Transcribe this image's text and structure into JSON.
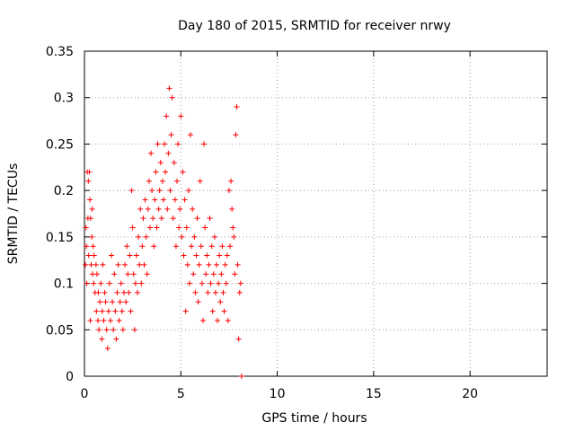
{
  "chart_data": {
    "type": "scatter",
    "title": "Day 180 of 2015, SRMTID for receiver nrwy",
    "xlabel": "GPS time / hours",
    "ylabel": "SRMTID / TECUs",
    "xlim": [
      0,
      24
    ],
    "ylim": [
      0,
      0.35
    ],
    "x_ticks": [
      0,
      5,
      10,
      15,
      20
    ],
    "x_tick_labels": [
      "0",
      "5",
      "10",
      "15",
      "20"
    ],
    "y_ticks": [
      0,
      0.05,
      0.1,
      0.15,
      0.2,
      0.25,
      0.3,
      0.35
    ],
    "y_tick_labels": [
      "0",
      "0.05",
      "0.1",
      "0.15",
      "0.2",
      "0.25",
      "0.3",
      "0.35"
    ],
    "grid": true,
    "marker": "+",
    "marker_color": "#ff0000",
    "series": [
      {
        "name": "SRMTID",
        "points": [
          [
            0.05,
            0.12
          ],
          [
            0.08,
            0.16
          ],
          [
            0.1,
            0.14
          ],
          [
            0.12,
            0.1
          ],
          [
            0.15,
            0.22
          ],
          [
            0.18,
            0.17
          ],
          [
            0.2,
            0.21
          ],
          [
            0.22,
            0.13
          ],
          [
            0.25,
            0.22
          ],
          [
            0.28,
            0.19
          ],
          [
            0.3,
            0.06
          ],
          [
            0.32,
            0.17
          ],
          [
            0.35,
            0.12
          ],
          [
            0.38,
            0.15
          ],
          [
            0.4,
            0.18
          ],
          [
            0.42,
            0.11
          ],
          [
            0.45,
            0.14
          ],
          [
            0.48,
            0.1
          ],
          [
            0.5,
            0.13
          ],
          [
            0.55,
            0.09
          ],
          [
            0.6,
            0.12
          ],
          [
            0.62,
            0.07
          ],
          [
            0.65,
            0.11
          ],
          [
            0.7,
            0.06
          ],
          [
            0.72,
            0.09
          ],
          [
            0.75,
            0.05
          ],
          [
            0.8,
            0.08
          ],
          [
            0.85,
            0.1
          ],
          [
            0.9,
            0.04
          ],
          [
            0.92,
            0.07
          ],
          [
            0.95,
            0.12
          ],
          [
            1.0,
            0.06
          ],
          [
            1.05,
            0.09
          ],
          [
            1.1,
            0.08
          ],
          [
            1.15,
            0.05
          ],
          [
            1.2,
            0.03
          ],
          [
            1.25,
            0.07
          ],
          [
            1.3,
            0.1
          ],
          [
            1.35,
            0.06
          ],
          [
            1.4,
            0.13
          ],
          [
            1.45,
            0.08
          ],
          [
            1.5,
            0.05
          ],
          [
            1.55,
            0.11
          ],
          [
            1.6,
            0.07
          ],
          [
            1.65,
            0.04
          ],
          [
            1.7,
            0.09
          ],
          [
            1.75,
            0.12
          ],
          [
            1.8,
            0.06
          ],
          [
            1.85,
            0.08
          ],
          [
            1.9,
            0.1
          ],
          [
            1.95,
            0.07
          ],
          [
            2.0,
            0.05
          ],
          [
            2.05,
            0.09
          ],
          [
            2.1,
            0.12
          ],
          [
            2.15,
            0.08
          ],
          [
            2.2,
            0.14
          ],
          [
            2.25,
            0.11
          ],
          [
            2.3,
            0.09
          ],
          [
            2.35,
            0.13
          ],
          [
            2.4,
            0.07
          ],
          [
            2.45,
            0.2
          ],
          [
            2.5,
            0.16
          ],
          [
            2.55,
            0.11
          ],
          [
            2.6,
            0.05
          ],
          [
            2.65,
            0.1
          ],
          [
            2.7,
            0.13
          ],
          [
            2.75,
            0.09
          ],
          [
            2.8,
            0.15
          ],
          [
            2.85,
            0.12
          ],
          [
            2.9,
            0.18
          ],
          [
            2.95,
            0.1
          ],
          [
            3.0,
            0.14
          ],
          [
            3.05,
            0.17
          ],
          [
            3.1,
            0.12
          ],
          [
            3.15,
            0.19
          ],
          [
            3.2,
            0.15
          ],
          [
            3.25,
            0.11
          ],
          [
            3.3,
            0.18
          ],
          [
            3.35,
            0.21
          ],
          [
            3.4,
            0.16
          ],
          [
            3.45,
            0.24
          ],
          [
            3.5,
            0.2
          ],
          [
            3.55,
            0.17
          ],
          [
            3.6,
            0.14
          ],
          [
            3.65,
            0.19
          ],
          [
            3.7,
            0.22
          ],
          [
            3.75,
            0.16
          ],
          [
            3.8,
            0.25
          ],
          [
            3.85,
            0.18
          ],
          [
            3.9,
            0.2
          ],
          [
            3.95,
            0.23
          ],
          [
            4.0,
            0.17
          ],
          [
            4.05,
            0.21
          ],
          [
            4.1,
            0.19
          ],
          [
            4.15,
            0.25
          ],
          [
            4.2,
            0.22
          ],
          [
            4.25,
            0.28
          ],
          [
            4.3,
            0.18
          ],
          [
            4.35,
            0.24
          ],
          [
            4.4,
            0.31
          ],
          [
            4.45,
            0.2
          ],
          [
            4.5,
            0.26
          ],
          [
            4.55,
            0.3
          ],
          [
            4.6,
            0.17
          ],
          [
            4.65,
            0.23
          ],
          [
            4.7,
            0.19
          ],
          [
            4.75,
            0.14
          ],
          [
            4.8,
            0.21
          ],
          [
            4.85,
            0.25
          ],
          [
            4.9,
            0.16
          ],
          [
            4.95,
            0.18
          ],
          [
            5.0,
            0.28
          ],
          [
            5.05,
            0.15
          ],
          [
            5.1,
            0.22
          ],
          [
            5.15,
            0.13
          ],
          [
            5.2,
            0.19
          ],
          [
            5.25,
            0.07
          ],
          [
            5.3,
            0.16
          ],
          [
            5.35,
            0.12
          ],
          [
            5.4,
            0.2
          ],
          [
            5.45,
            0.1
          ],
          [
            5.5,
            0.26
          ],
          [
            5.55,
            0.14
          ],
          [
            5.6,
            0.18
          ],
          [
            5.65,
            0.11
          ],
          [
            5.7,
            0.15
          ],
          [
            5.75,
            0.09
          ],
          [
            5.8,
            0.13
          ],
          [
            5.85,
            0.17
          ],
          [
            5.9,
            0.08
          ],
          [
            5.95,
            0.12
          ],
          [
            6.0,
            0.21
          ],
          [
            6.05,
            0.14
          ],
          [
            6.1,
            0.1
          ],
          [
            6.15,
            0.06
          ],
          [
            6.2,
            0.25
          ],
          [
            6.25,
            0.16
          ],
          [
            6.3,
            0.11
          ],
          [
            6.35,
            0.13
          ],
          [
            6.4,
            0.09
          ],
          [
            6.45,
            0.12
          ],
          [
            6.5,
            0.17
          ],
          [
            6.55,
            0.1
          ],
          [
            6.6,
            0.14
          ],
          [
            6.65,
            0.07
          ],
          [
            6.7,
            0.11
          ],
          [
            6.75,
            0.15
          ],
          [
            6.8,
            0.09
          ],
          [
            6.85,
            0.12
          ],
          [
            6.9,
            0.06
          ],
          [
            6.95,
            0.1
          ],
          [
            7.0,
            0.13
          ],
          [
            7.05,
            0.08
          ],
          [
            7.1,
            0.11
          ],
          [
            7.15,
            0.14
          ],
          [
            7.2,
            0.09
          ],
          [
            7.25,
            0.07
          ],
          [
            7.3,
            0.12
          ],
          [
            7.35,
            0.1
          ],
          [
            7.4,
            0.13
          ],
          [
            7.45,
            0.06
          ],
          [
            7.5,
            0.2
          ],
          [
            7.55,
            0.14
          ],
          [
            7.6,
            0.21
          ],
          [
            7.65,
            0.18
          ],
          [
            7.7,
            0.16
          ],
          [
            7.75,
            0.15
          ],
          [
            7.8,
            0.11
          ],
          [
            7.85,
            0.26
          ],
          [
            7.9,
            0.29
          ],
          [
            7.95,
            0.12
          ],
          [
            8.0,
            0.04
          ],
          [
            8.05,
            0.09
          ],
          [
            8.1,
            0.1
          ],
          [
            8.15,
            0.0
          ]
        ]
      }
    ]
  }
}
